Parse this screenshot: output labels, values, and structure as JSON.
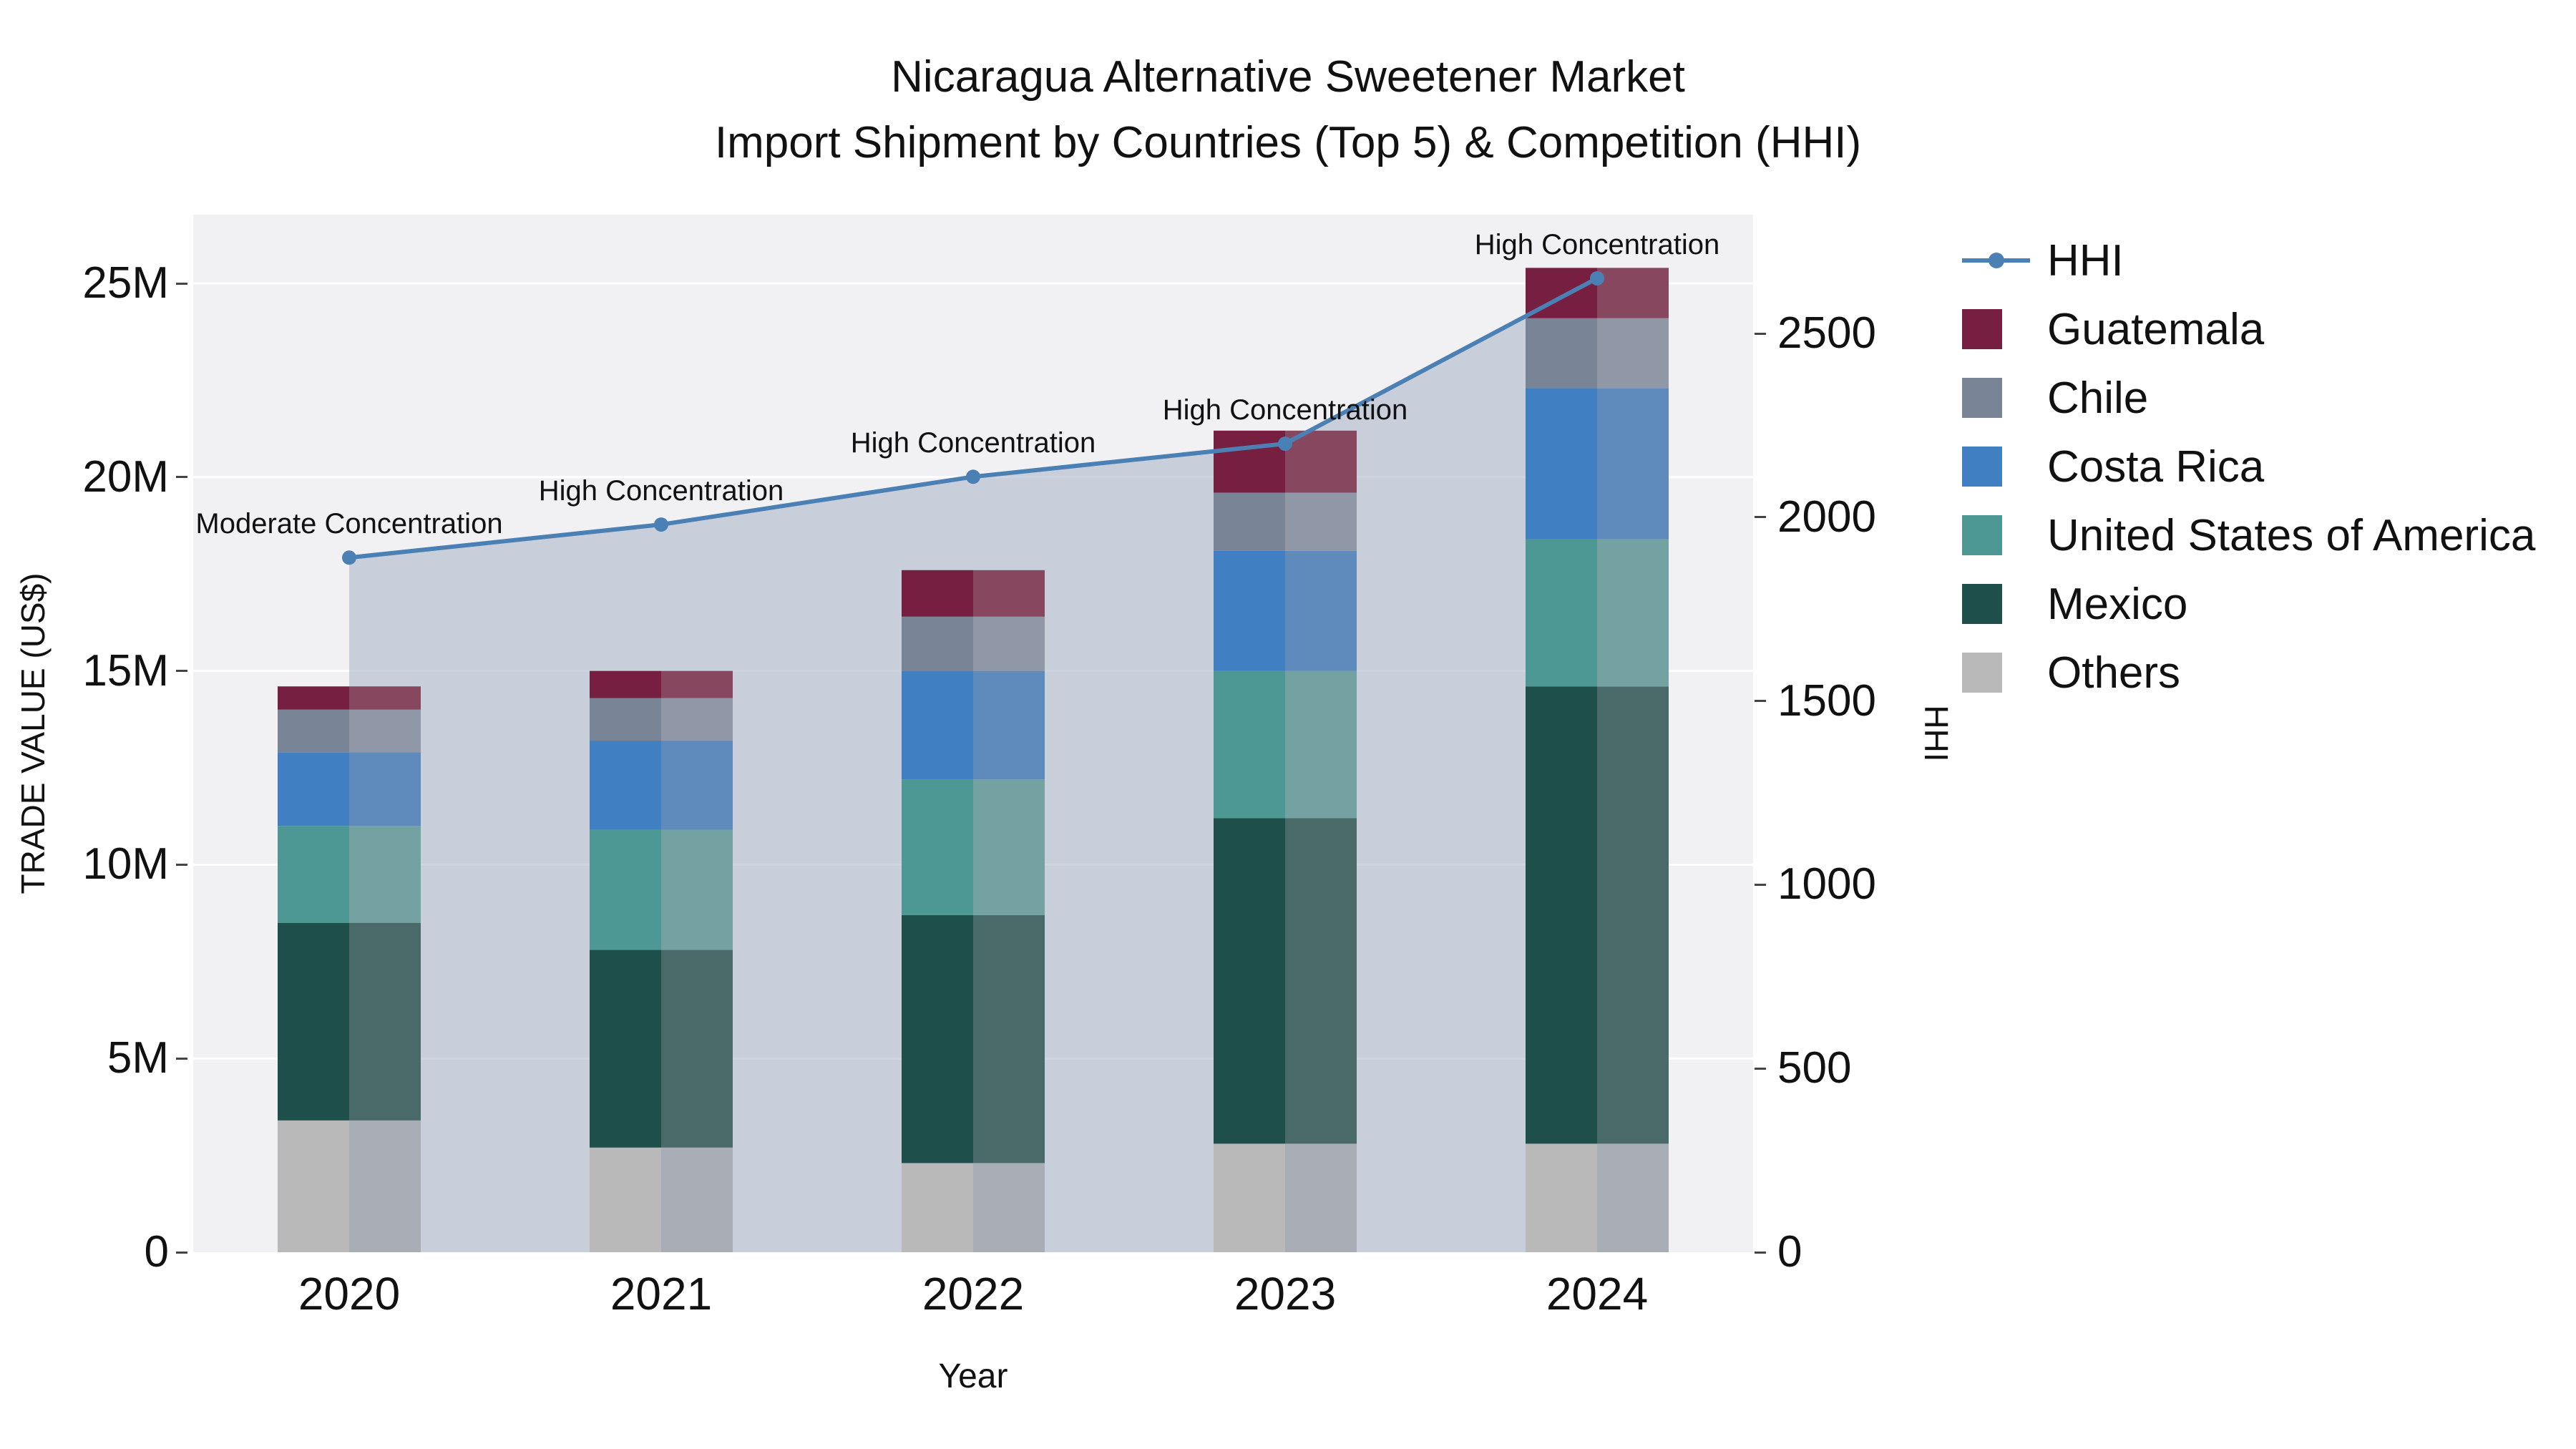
{
  "chart_data": {
    "type": "bar",
    "title": "Nicaragua Alternative Sweetener Market",
    "subtitle": "Import Shipment by Countries (Top 5) & Competition (HHI)",
    "xlabel": "Year",
    "ylabel_left": "TRADE VALUE (US$)",
    "ylabel_right": "HHI",
    "categories": [
      "2020",
      "2021",
      "2022",
      "2023",
      "2024"
    ],
    "value_unit": "millions US$",
    "series": [
      {
        "name": "Others",
        "color": "#b9b9ba",
        "color_muted": "#a9adb6",
        "values": [
          3.4,
          2.7,
          2.3,
          2.8,
          2.8
        ]
      },
      {
        "name": "Mexico",
        "color": "#1f4f4b",
        "color_muted": "#4a6a69",
        "values": [
          5.1,
          5.1,
          6.4,
          8.4,
          11.8
        ]
      },
      {
        "name": "United States of America",
        "color": "#4d9894",
        "color_muted": "#74a1a1",
        "values": [
          2.5,
          3.1,
          3.5,
          3.8,
          3.8
        ]
      },
      {
        "name": "Costa Rica",
        "color": "#407fc1",
        "color_muted": "#5e8abc",
        "values": [
          1.9,
          2.3,
          2.8,
          3.1,
          3.9
        ]
      },
      {
        "name": "Chile",
        "color": "#7a8497",
        "color_muted": "#9098a8",
        "values": [
          1.1,
          1.1,
          1.4,
          1.5,
          1.8
        ]
      },
      {
        "name": "Guatemala",
        "color": "#771f41",
        "color_muted": "#87485f",
        "values": [
          0.6,
          0.7,
          1.2,
          1.6,
          1.3
        ]
      }
    ],
    "bar_totals": [
      14.6,
      15.0,
      17.6,
      21.2,
      25.4
    ],
    "line": {
      "name": "HHI",
      "color": "#4a80b4",
      "fill_color": "rgba(175,186,204,0.62)",
      "values": [
        1890,
        1980,
        2110,
        2200,
        2650
      ],
      "annotations": [
        "Moderate Concentration",
        "High Concentration",
        "High Concentration",
        "High Concentration",
        "High Concentration"
      ]
    },
    "left_axis": {
      "ticks": [
        "0",
        "5M",
        "10M",
        "15M",
        "20M",
        "25M"
      ],
      "tick_values": [
        0,
        5,
        10,
        15,
        20,
        25
      ]
    },
    "right_axis": {
      "ticks": [
        "0",
        "500",
        "1000",
        "1500",
        "2000",
        "2500"
      ],
      "tick_values": [
        0,
        500,
        1000,
        1500,
        2000,
        2500
      ]
    },
    "legend": [
      "HHI",
      "Guatemala",
      "Chile",
      "Costa Rica",
      "United States of America",
      "Mexico",
      "Others"
    ],
    "grid": "horizontal-white",
    "legend_position": "right-top-outside"
  }
}
